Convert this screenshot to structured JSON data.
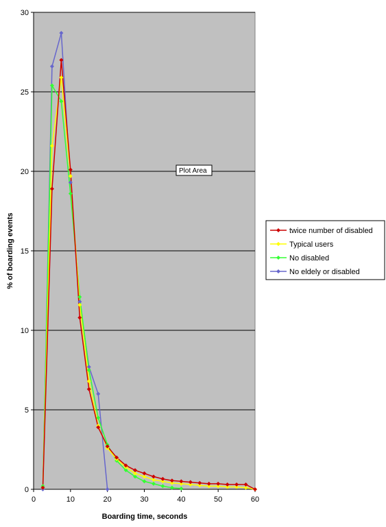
{
  "chart_data": {
    "type": "line",
    "xlabel": "Boarding time, seconds",
    "ylabel": "% of boarding events",
    "xlim": [
      0,
      60
    ],
    "ylim": [
      0,
      30
    ],
    "x_ticks": [
      0,
      10,
      20,
      30,
      40,
      50,
      60
    ],
    "y_ticks": [
      0,
      5,
      10,
      15,
      20,
      25,
      30
    ],
    "grid": "horizontal major gridlines",
    "plot_background": "#c0c0c0",
    "legend_position": "right",
    "tooltip": "Plot Area",
    "series": [
      {
        "name": "twice number of disabled",
        "color": "#cc0000",
        "x": [
          2.5,
          5,
          7.5,
          10,
          12.5,
          15,
          17.5,
          20,
          22.5,
          25,
          27.5,
          30,
          32.5,
          35,
          37.5,
          40,
          42.5,
          45,
          47.5,
          50,
          52.5,
          55,
          57.5,
          60
        ],
        "y": [
          0.1,
          18.9,
          27.0,
          20.1,
          10.8,
          6.3,
          3.9,
          2.7,
          2.0,
          1.5,
          1.2,
          1.0,
          0.8,
          0.65,
          0.55,
          0.5,
          0.45,
          0.4,
          0.35,
          0.35,
          0.3,
          0.3,
          0.3,
          0.0
        ]
      },
      {
        "name": "Typical users",
        "color": "#ffff00",
        "x": [
          2.5,
          5,
          7.5,
          10,
          12.5,
          15,
          17.5,
          20,
          22.5,
          25,
          27.5,
          30,
          32.5,
          35,
          37.5,
          40,
          42.5,
          45,
          47.5,
          50,
          52.5,
          55,
          57.5,
          60
        ],
        "y": [
          0.1,
          21.6,
          25.9,
          19.7,
          11.6,
          6.8,
          4.0,
          2.6,
          1.9,
          1.4,
          1.0,
          0.8,
          0.6,
          0.5,
          0.4,
          0.35,
          0.3,
          0.25,
          0.2,
          0.2,
          0.15,
          0.15,
          0.1,
          0.0
        ]
      },
      {
        "name": "No disabled",
        "color": "#33ff33",
        "x": [
          2.5,
          5,
          7.5,
          10,
          12.5,
          15,
          17.5,
          20,
          22.5,
          25,
          27.5,
          30,
          32.5,
          35,
          37.5,
          40
        ],
        "y": [
          0.2,
          25.4,
          24.4,
          18.6,
          12.1,
          7.5,
          4.5,
          2.8,
          1.8,
          1.2,
          0.8,
          0.5,
          0.35,
          0.2,
          0.1,
          0.05
        ]
      },
      {
        "name": "No eldely or disabled",
        "color": "#6666cc",
        "x": [
          2.5,
          5,
          7.5,
          10,
          12.5,
          15,
          17.5,
          20
        ],
        "y": [
          0.0,
          26.6,
          28.7,
          19.3,
          11.8,
          7.7,
          6.0,
          0.0
        ]
      }
    ]
  }
}
